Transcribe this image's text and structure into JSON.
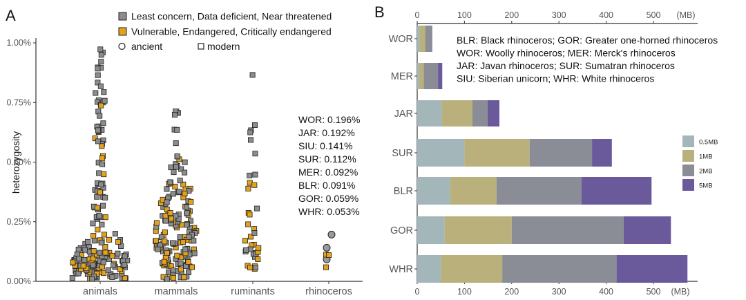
{
  "chart_data": [
    {
      "panel": "A",
      "type": "scatter",
      "subtype": "beeswarm",
      "ylabel": "heterozygosity",
      "yticks": [
        "0.00%",
        "0.25%",
        "0.50%",
        "0.75%",
        "1.00%"
      ],
      "ylim": [
        0,
        1.0
      ],
      "categories": [
        "animals",
        "mammals",
        "ruminants",
        "rhinoceros"
      ],
      "legend": [
        {
          "label": "Least concern, Data deficient, Near threatened",
          "color": "#8c8c8c",
          "marker": "square"
        },
        {
          "label": "Vulnerable, Endangered, Critically endangered",
          "color": "#e3a21a",
          "marker": "square"
        },
        {
          "label": "ancient",
          "marker": "circle-open"
        },
        {
          "label": "modern",
          "marker": "square-open"
        }
      ],
      "rhinoceros_ancient": [
        0.196,
        0.141,
        0.092
      ],
      "rhinoceros_modern": [
        0.112,
        0.059
      ],
      "annotations": [
        {
          "label": "WOR: 0.196%",
          "value": 0.196
        },
        {
          "label": "JAR: 0.192%",
          "value": 0.192
        },
        {
          "label": "SIU: 0.141%",
          "value": 0.141
        },
        {
          "label": "SUR: 0.112%",
          "value": 0.112
        },
        {
          "label": "MER: 0.092%",
          "value": 0.092
        },
        {
          "label": "BLR: 0.091%",
          "value": 0.091
        },
        {
          "label": "GOR: 0.059%",
          "value": 0.059
        },
        {
          "label": "WHR: 0.053%",
          "value": 0.053
        }
      ]
    },
    {
      "panel": "B",
      "type": "bar",
      "orientation": "horizontal",
      "stacked": true,
      "unit_label": "(MB)",
      "xticks": [
        0,
        100,
        200,
        300,
        400,
        500
      ],
      "xlim": [
        0,
        570
      ],
      "categories": [
        "WOR",
        "MER",
        "JAR",
        "SUR",
        "BLR",
        "GOR",
        "WHR"
      ],
      "series": [
        {
          "name": "0.5MB",
          "color": "#a3b6ba",
          "values": [
            5,
            4,
            52,
            100,
            70,
            58,
            50
          ]
        },
        {
          "name": "1MB",
          "color": "#b9b07b",
          "values": [
            12,
            10,
            65,
            138,
            98,
            142,
            130
          ]
        },
        {
          "name": "2MB",
          "color": "#8a8c96",
          "values": [
            15,
            30,
            32,
            132,
            180,
            237,
            242
          ]
        },
        {
          "name": "5MB",
          "color": "#6a5a9c",
          "values": [
            0,
            9,
            25,
            42,
            148,
            100,
            150
          ]
        }
      ],
      "key_text": [
        "BLR: Black rhinoceros; GOR: Greater one-horned rhinoceros",
        "WOR: Woolly rhinoceros; MER: Merck's rhinoceros",
        "JAR: Javan rhinoceros; SUR: Sumatran rhinoceros",
        "SIU: Siberian unicorn; WHR: White rhinoceros"
      ]
    }
  ],
  "panel_labels": {
    "a": "A",
    "b": "B"
  }
}
